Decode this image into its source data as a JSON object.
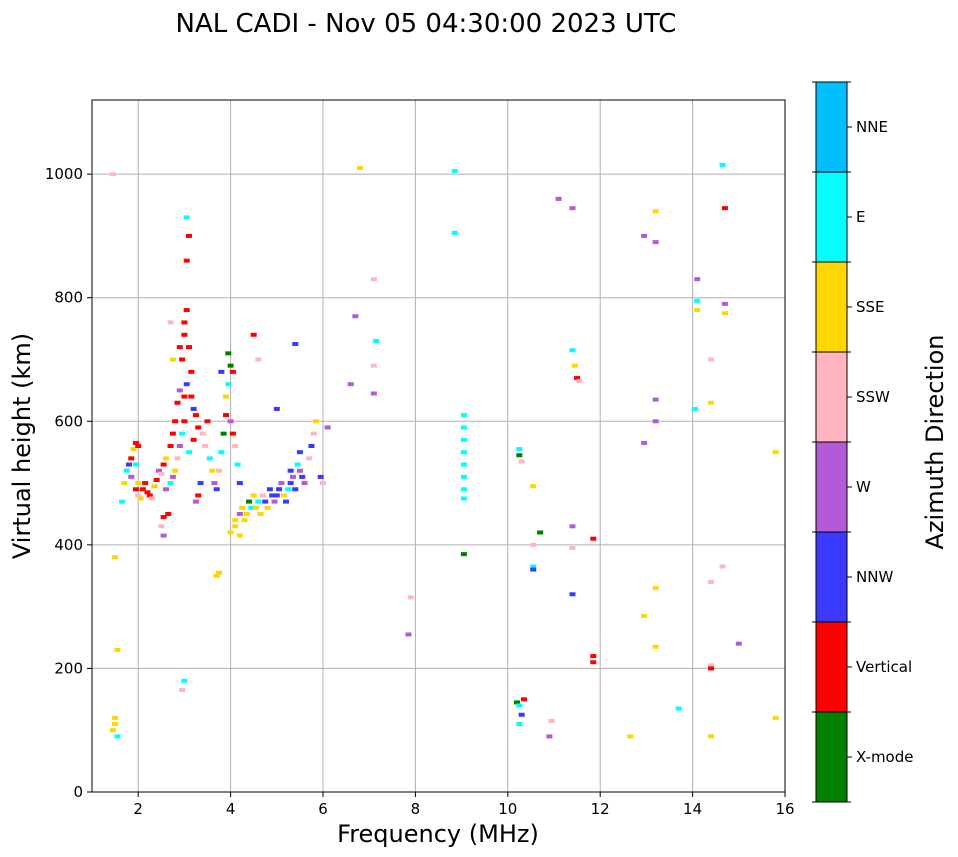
{
  "chart_data": {
    "type": "scatter",
    "title": "NAL CADI - Nov 05 04:30:00 2023 UTC",
    "xlabel": "Frequency (MHz)",
    "ylabel": "Virtual height (km)",
    "xlim": [
      1,
      16
    ],
    "ylim": [
      0,
      1120
    ],
    "xticks": [
      2,
      4,
      6,
      8,
      10,
      12,
      14,
      16
    ],
    "yticks": [
      0,
      200,
      400,
      600,
      800,
      1000
    ],
    "grid": true,
    "colorbar": {
      "label": "Azimuth Direction",
      "categories": [
        "X-mode",
        "Vertical",
        "NNW",
        "W",
        "SSW",
        "SSE",
        "E",
        "NNE"
      ],
      "colors": [
        "#008000",
        "#ff0000",
        "#3a3aff",
        "#b45ad6",
        "#ffb6c1",
        "#ffd700",
        "#00ffff",
        "#00bfff"
      ]
    },
    "points": [
      [
        1.45,
        1000,
        4
      ],
      [
        1.5,
        380,
        5
      ],
      [
        1.55,
        230,
        5
      ],
      [
        1.45,
        100,
        5
      ],
      [
        1.5,
        110,
        5
      ],
      [
        1.5,
        120,
        5
      ],
      [
        1.55,
        90,
        6
      ],
      [
        1.65,
        470,
        6
      ],
      [
        1.7,
        500,
        5
      ],
      [
        1.75,
        520,
        6
      ],
      [
        1.8,
        530,
        2
      ],
      [
        1.85,
        540,
        1
      ],
      [
        1.9,
        555,
        5
      ],
      [
        1.85,
        510,
        3
      ],
      [
        1.95,
        530,
        6
      ],
      [
        1.95,
        565,
        1
      ],
      [
        2.0,
        500,
        5
      ],
      [
        2.0,
        480,
        4
      ],
      [
        1.95,
        490,
        1
      ],
      [
        2.0,
        560,
        1
      ],
      [
        2.05,
        475,
        5
      ],
      [
        2.1,
        490,
        1
      ],
      [
        2.15,
        500,
        1
      ],
      [
        2.2,
        485,
        1
      ],
      [
        2.25,
        480,
        1
      ],
      [
        2.3,
        475,
        4
      ],
      [
        2.35,
        495,
        5
      ],
      [
        2.4,
        505,
        1
      ],
      [
        2.45,
        520,
        3
      ],
      [
        2.5,
        515,
        4
      ],
      [
        2.55,
        530,
        1
      ],
      [
        2.6,
        540,
        5
      ],
      [
        2.6,
        490,
        3
      ],
      [
        2.55,
        445,
        1
      ],
      [
        2.65,
        450,
        1
      ],
      [
        2.5,
        430,
        4
      ],
      [
        2.55,
        415,
        3
      ],
      [
        2.7,
        500,
        6
      ],
      [
        2.7,
        560,
        1
      ],
      [
        2.75,
        580,
        1
      ],
      [
        2.8,
        600,
        1
      ],
      [
        2.85,
        630,
        1
      ],
      [
        2.9,
        650,
        3
      ],
      [
        2.95,
        700,
        1
      ],
      [
        3.0,
        740,
        1
      ],
      [
        3.0,
        760,
        1
      ],
      [
        3.05,
        780,
        1
      ],
      [
        3.05,
        860,
        1
      ],
      [
        3.1,
        900,
        1
      ],
      [
        3.05,
        930,
        6
      ],
      [
        3.1,
        720,
        1
      ],
      [
        3.15,
        680,
        1
      ],
      [
        3.2,
        620,
        2
      ],
      [
        3.2,
        570,
        1
      ],
      [
        3.1,
        550,
        6
      ],
      [
        3.0,
        600,
        1
      ],
      [
        2.95,
        580,
        6
      ],
      [
        2.9,
        560,
        3
      ],
      [
        2.85,
        540,
        4
      ],
      [
        2.8,
        520,
        5
      ],
      [
        2.75,
        510,
        3
      ],
      [
        2.7,
        760,
        4
      ],
      [
        2.75,
        700,
        5
      ],
      [
        2.9,
        720,
        1
      ],
      [
        3.0,
        640,
        1
      ],
      [
        3.05,
        660,
        2
      ],
      [
        3.15,
        640,
        1
      ],
      [
        3.25,
        610,
        1
      ],
      [
        3.3,
        590,
        1
      ],
      [
        3.35,
        500,
        2
      ],
      [
        3.3,
        480,
        1
      ],
      [
        3.25,
        470,
        3
      ],
      [
        3.4,
        580,
        4
      ],
      [
        3.5,
        600,
        1
      ],
      [
        3.45,
        560,
        4
      ],
      [
        3.55,
        540,
        6
      ],
      [
        3.6,
        520,
        5
      ],
      [
        3.65,
        500,
        3
      ],
      [
        3.7,
        490,
        2
      ],
      [
        3.75,
        520,
        4
      ],
      [
        3.8,
        550,
        6
      ],
      [
        3.85,
        580,
        0
      ],
      [
        3.9,
        610,
        1
      ],
      [
        3.9,
        640,
        5
      ],
      [
        3.95,
        660,
        6
      ],
      [
        4.0,
        690,
        0
      ],
      [
        4.05,
        680,
        1
      ],
      [
        4.0,
        600,
        3
      ],
      [
        4.05,
        580,
        1
      ],
      [
        4.1,
        560,
        4
      ],
      [
        4.15,
        530,
        6
      ],
      [
        4.2,
        500,
        2
      ],
      [
        4.1,
        440,
        5
      ],
      [
        4.2,
        450,
        3
      ],
      [
        4.25,
        460,
        5
      ],
      [
        4.3,
        440,
        5
      ],
      [
        4.35,
        450,
        5
      ],
      [
        4.4,
        470,
        0
      ],
      [
        4.45,
        460,
        6
      ],
      [
        4.5,
        480,
        5
      ],
      [
        4.55,
        460,
        5
      ],
      [
        4.6,
        470,
        6
      ],
      [
        4.65,
        450,
        5
      ],
      [
        4.7,
        480,
        4
      ],
      [
        4.75,
        470,
        2
      ],
      [
        4.8,
        460,
        5
      ],
      [
        4.85,
        490,
        2
      ],
      [
        4.9,
        480,
        2
      ],
      [
        4.95,
        470,
        3
      ],
      [
        5.0,
        480,
        2
      ],
      [
        5.05,
        490,
        2
      ],
      [
        5.1,
        500,
        3
      ],
      [
        5.15,
        480,
        5
      ],
      [
        5.2,
        470,
        2
      ],
      [
        5.25,
        490,
        6
      ],
      [
        5.3,
        500,
        2
      ],
      [
        5.35,
        510,
        3
      ],
      [
        5.4,
        490,
        2
      ],
      [
        5.45,
        530,
        6
      ],
      [
        5.5,
        520,
        3
      ],
      [
        5.55,
        510,
        2
      ],
      [
        5.6,
        500,
        3
      ],
      [
        5.7,
        540,
        4
      ],
      [
        5.75,
        560,
        2
      ],
      [
        5.8,
        580,
        4
      ],
      [
        5.85,
        600,
        5
      ],
      [
        5.95,
        510,
        2
      ],
      [
        6.0,
        500,
        4
      ],
      [
        6.1,
        590,
        3
      ],
      [
        5.5,
        550,
        2
      ],
      [
        5.3,
        520,
        2
      ],
      [
        4.0,
        420,
        5
      ],
      [
        4.1,
        430,
        5
      ],
      [
        4.2,
        415,
        5
      ],
      [
        3.7,
        350,
        5
      ],
      [
        3.75,
        355,
        5
      ],
      [
        3.95,
        710,
        0
      ],
      [
        3.8,
        680,
        2
      ],
      [
        4.5,
        740,
        1
      ],
      [
        4.6,
        700,
        4
      ],
      [
        5.0,
        620,
        2
      ],
      [
        5.4,
        725,
        2
      ],
      [
        3.0,
        180,
        6
      ],
      [
        2.95,
        165,
        4
      ],
      [
        6.7,
        770,
        3
      ],
      [
        6.6,
        660,
        3
      ],
      [
        6.8,
        1010,
        5
      ],
      [
        7.1,
        830,
        4
      ],
      [
        7.15,
        730,
        6
      ],
      [
        7.1,
        690,
        4
      ],
      [
        7.1,
        645,
        3
      ],
      [
        7.9,
        315,
        4
      ],
      [
        7.85,
        255,
        3
      ],
      [
        8.85,
        1005,
        6
      ],
      [
        8.85,
        905,
        6
      ],
      [
        9.05,
        610,
        6
      ],
      [
        9.05,
        590,
        6
      ],
      [
        9.05,
        570,
        6
      ],
      [
        9.05,
        550,
        6
      ],
      [
        9.05,
        530,
        6
      ],
      [
        9.05,
        510,
        6
      ],
      [
        9.05,
        490,
        6
      ],
      [
        9.05,
        475,
        6
      ],
      [
        9.05,
        385,
        0
      ],
      [
        10.25,
        555,
        6
      ],
      [
        10.25,
        545,
        0
      ],
      [
        10.3,
        535,
        4
      ],
      [
        10.55,
        495,
        5
      ],
      [
        10.55,
        400,
        4
      ],
      [
        10.55,
        365,
        6
      ],
      [
        10.55,
        360,
        2
      ],
      [
        10.7,
        420,
        0
      ],
      [
        10.2,
        145,
        0
      ],
      [
        10.25,
        140,
        6
      ],
      [
        10.35,
        150,
        1
      ],
      [
        10.3,
        125,
        2
      ],
      [
        10.25,
        110,
        6
      ],
      [
        10.95,
        115,
        4
      ],
      [
        10.9,
        90,
        3
      ],
      [
        11.1,
        960,
        3
      ],
      [
        11.4,
        945,
        3
      ],
      [
        11.4,
        715,
        6
      ],
      [
        11.45,
        690,
        5
      ],
      [
        11.5,
        670,
        1
      ],
      [
        11.55,
        665,
        4
      ],
      [
        11.4,
        430,
        3
      ],
      [
        11.4,
        395,
        4
      ],
      [
        11.4,
        320,
        2
      ],
      [
        11.85,
        410,
        1
      ],
      [
        11.85,
        220,
        1
      ],
      [
        11.85,
        210,
        1
      ],
      [
        12.65,
        90,
        5
      ],
      [
        12.95,
        285,
        5
      ],
      [
        12.95,
        900,
        3
      ],
      [
        13.2,
        940,
        5
      ],
      [
        13.2,
        890,
        3
      ],
      [
        13.2,
        635,
        3
      ],
      [
        13.2,
        600,
        3
      ],
      [
        13.2,
        330,
        5
      ],
      [
        13.2,
        235,
        5
      ],
      [
        12.95,
        565,
        3
      ],
      [
        13.7,
        135,
        6
      ],
      [
        14.1,
        830,
        3
      ],
      [
        14.1,
        795,
        6
      ],
      [
        14.1,
        780,
        5
      ],
      [
        14.05,
        620,
        6
      ],
      [
        14.4,
        700,
        4
      ],
      [
        14.4,
        630,
        5
      ],
      [
        14.4,
        340,
        4
      ],
      [
        14.4,
        205,
        4
      ],
      [
        14.4,
        200,
        1
      ],
      [
        14.4,
        90,
        5
      ],
      [
        14.65,
        1015,
        6
      ],
      [
        14.7,
        945,
        1
      ],
      [
        14.7,
        790,
        3
      ],
      [
        14.7,
        775,
        5
      ],
      [
        14.65,
        365,
        4
      ],
      [
        15.0,
        240,
        3
      ],
      [
        15.8,
        550,
        5
      ],
      [
        15.8,
        120,
        5
      ]
    ]
  }
}
